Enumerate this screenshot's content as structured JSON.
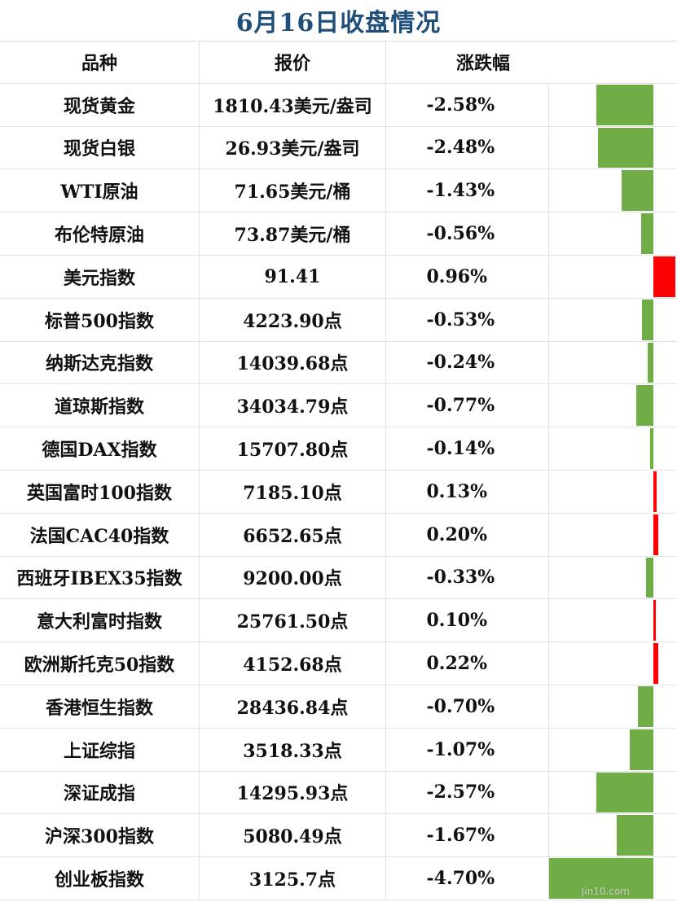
{
  "title": "6月16日收盘情况",
  "headers": {
    "name": "品种",
    "price": "报价",
    "change": "涨跌幅"
  },
  "colors": {
    "up": "#ff0000",
    "down": "#70ad47",
    "title": "#1f4e79"
  },
  "watermark": "Jin10.com",
  "chart_data": {
    "type": "bar",
    "title": "6月16日收盘情况",
    "categories": [
      "现货黄金",
      "现货白银",
      "WTI原油",
      "布伦特原油",
      "美元指数",
      "标普500指数",
      "纳斯达克指数",
      "道琼斯指数",
      "德国DAX指数",
      "英国富时100指数",
      "法国CAC40指数",
      "西班牙IBEX35指数",
      "意大利富时指数",
      "欧洲斯托克50指数",
      "香港恒生指数",
      "上证综指",
      "深证成指",
      "沪深300指数",
      "创业板指数"
    ],
    "prices": [
      "1810.43美元/盎司",
      "26.93美元/盎司",
      "71.65美元/桶",
      "73.87美元/桶",
      "91.41",
      "4223.90点",
      "14039.68点",
      "34034.79点",
      "15707.80点",
      "7185.10点",
      "6652.65点",
      "9200.00点",
      "25761.50点",
      "4152.68点",
      "28436.84点",
      "3518.33点",
      "14295.93点",
      "5080.49点",
      "3125.7点"
    ],
    "change_labels": [
      "-2.58%",
      "-2.48%",
      "-1.43%",
      "-0.56%",
      "0.96%",
      "-0.53%",
      "-0.24%",
      "-0.77%",
      "-0.14%",
      "0.13%",
      "0.20%",
      "-0.33%",
      "0.10%",
      "0.22%",
      "-0.70%",
      "-1.07%",
      "-2.57%",
      "-1.67%",
      "-4.70%"
    ],
    "values": [
      -2.58,
      -2.48,
      -1.43,
      -0.56,
      0.96,
      -0.53,
      -0.24,
      -0.77,
      -0.14,
      0.13,
      0.2,
      -0.33,
      0.1,
      0.22,
      -0.7,
      -1.07,
      -2.57,
      -1.67,
      -4.7
    ],
    "unit": "%"
  }
}
